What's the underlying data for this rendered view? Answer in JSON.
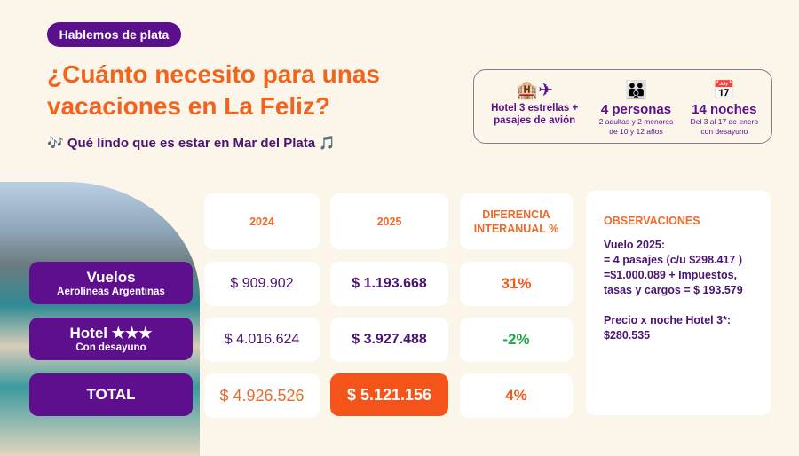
{
  "badge": "Hablemos de plata",
  "title": "¿Cuánto necesito para unas vacaciones en La Feliz?",
  "subtitle": "🎶 Qué lindo que es estar en Mar del Plata 🎵",
  "info": [
    {
      "icon": "hotel-plane-icon",
      "glyph": "🏨✈",
      "main": "Hotel 3 estrellas + pasajes de avión",
      "detail": ""
    },
    {
      "icon": "family-icon",
      "glyph": "👪",
      "main": "4 personas",
      "detail": "2 adultas y 2 menores de 10 y 12 años"
    },
    {
      "icon": "calendar-icon",
      "glyph": "📅",
      "main": "14 noches",
      "detail": "Del 3 al 17 de enero con desayuno"
    }
  ],
  "table": {
    "headers": [
      "2024",
      "2025",
      "DIFERENCIA INTERANUAL %"
    ],
    "rows": [
      {
        "label": "Vuelos",
        "sublabel": "Aerolíneas Argentinas",
        "v2024": "$ 909.902",
        "v2025": "$ 1.193.668",
        "diff": "31%",
        "diff_color": "#f0581e"
      },
      {
        "label": "Hotel ★★★",
        "sublabel": "Con desayuno",
        "v2024": "$ 4.016.624",
        "v2025": "$ 3.927.488",
        "diff": "-2%",
        "diff_color": "#1ea84a"
      },
      {
        "label": "TOTAL",
        "sublabel": "",
        "v2024": "$ 4.926.526",
        "v2025": "$ 5.121.156",
        "diff": "4%",
        "diff_color": "#f0581e"
      }
    ]
  },
  "observations": {
    "title": "OBSERVACIONES",
    "p1": "Vuelo 2025:",
    "p2": "= 4 pasajes (c/u $298.417 ) =$1.000.089 + Impuestos, tasas y cargos = $ 193.579",
    "p3": "Precio x noche Hotel 3*:",
    "p4": "$280.535"
  },
  "colors": {
    "purple": "#5e0f8e",
    "orange": "#f0641e",
    "background": "#fcf5ea"
  }
}
